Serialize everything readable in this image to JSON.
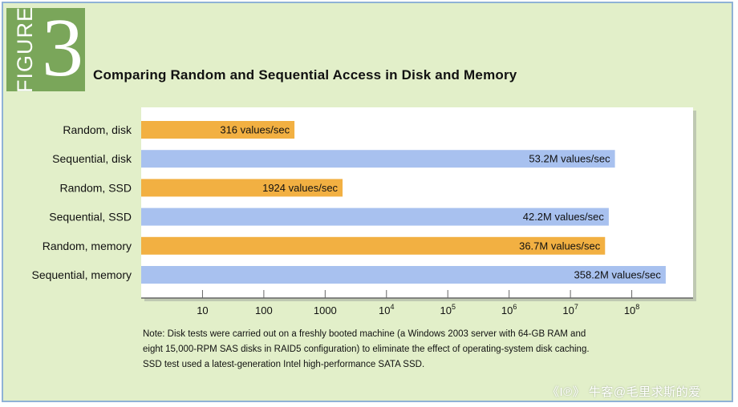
{
  "figure": {
    "word": "FIGURE",
    "number": "3"
  },
  "chart_data": {
    "type": "bar",
    "orientation": "horizontal",
    "title": "Comparing Random and Sequential Access in Disk and Memory",
    "x_scale": "log",
    "xlim": [
      1,
      1000000000
    ],
    "x_ticks": [
      {
        "value": 10,
        "base": "10",
        "exp": ""
      },
      {
        "value": 100,
        "base": "100",
        "exp": ""
      },
      {
        "value": 1000,
        "base": "1000",
        "exp": ""
      },
      {
        "value": 10000,
        "base": "10",
        "exp": "4"
      },
      {
        "value": 100000,
        "base": "10",
        "exp": "5"
      },
      {
        "value": 1000000,
        "base": "10",
        "exp": "6"
      },
      {
        "value": 10000000,
        "base": "10",
        "exp": "7"
      },
      {
        "value": 100000000,
        "base": "10",
        "exp": "8"
      }
    ],
    "bars": [
      {
        "category": "Random, disk",
        "value": 316,
        "label": "316 values/sec",
        "color": "#f2b042"
      },
      {
        "category": "Sequential, disk",
        "value": 53200000,
        "label": "53.2M values/sec",
        "color": "#a8c1ef"
      },
      {
        "category": "Random, SSD",
        "value": 1924,
        "label": "1924 values/sec",
        "color": "#f2b042"
      },
      {
        "category": "Sequential, SSD",
        "value": 42200000,
        "label": "42.2M values/sec",
        "color": "#a8c1ef"
      },
      {
        "category": "Random, memory",
        "value": 36700000,
        "label": "36.7M values/sec",
        "color": "#f2b042"
      },
      {
        "category": "Sequential, memory",
        "value": 358200000,
        "label": "358.2M values/sec",
        "color": "#a8c1ef"
      }
    ],
    "note_lines": [
      "Note: Disk tests were carried out on a freshly booted machine (a Windows 2003 server with 64-GB RAM and",
      "eight 15,000-RPM SAS disks in RAID5 configuration) to eliminate the effect of operating-system disk caching.",
      "SSD test used a latest-generation Intel high-performance SATA SSD."
    ]
  },
  "watermark": "《Ι℗》 牛客@毛里求斯的爱",
  "colors": {
    "background": "#e2efc9",
    "badge": "#7aa65a",
    "plot_bg": "#ffffff",
    "axis": "#666666"
  }
}
